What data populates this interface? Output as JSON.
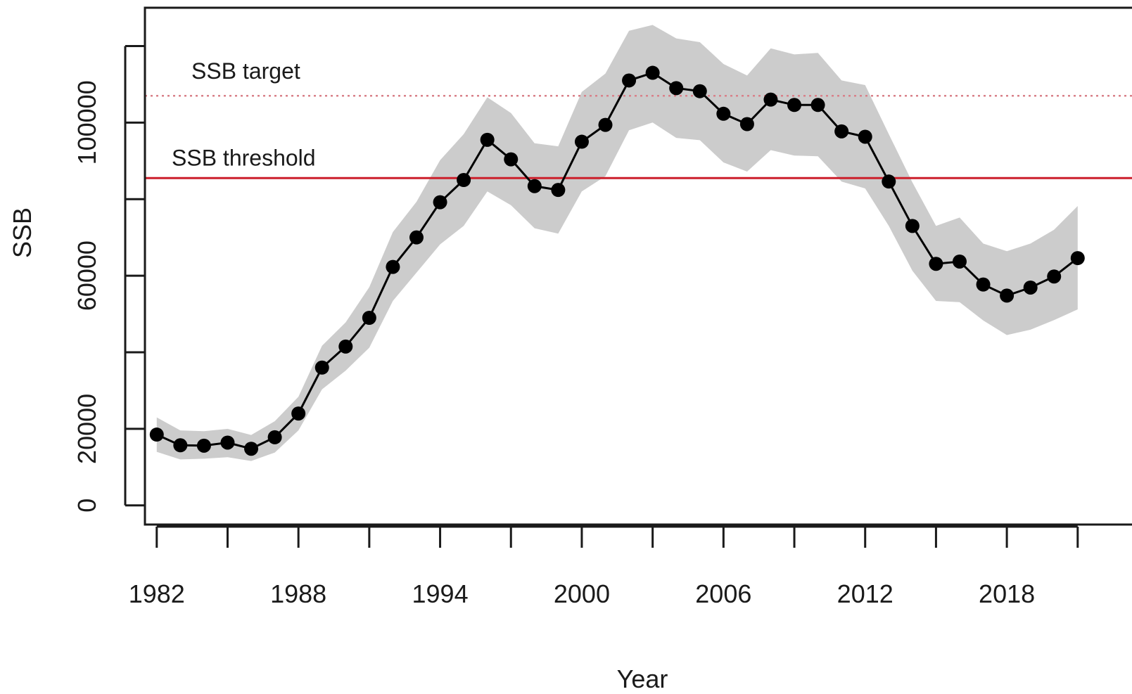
{
  "chart_data": {
    "type": "line",
    "xlabel": "Year",
    "ylabel": "SSB",
    "xlim": [
      1981.5,
      2023.3
    ],
    "ylim": [
      -5000,
      130000
    ],
    "x_ticks": [
      1982,
      1985,
      1988,
      1991,
      1994,
      1997,
      2000,
      2003,
      2006,
      2009,
      2012,
      2015,
      2018,
      2021
    ],
    "x_tick_labels": [
      1982,
      1988,
      1994,
      2000,
      2006,
      2012,
      2018
    ],
    "y_ticks": [
      0,
      20000,
      40000,
      60000,
      80000,
      100000,
      120000
    ],
    "y_tick_labels": [
      0,
      20000,
      60000,
      100000
    ],
    "grid": false,
    "series": [
      {
        "x": [
          1982,
          1983,
          1984,
          1985,
          1986,
          1987,
          1988,
          1989,
          1990,
          1991,
          1992,
          1993,
          1994,
          1995,
          1996,
          1997,
          1998,
          1999,
          2000,
          2001,
          2002,
          2003,
          2004,
          2005,
          2006,
          2007,
          2008,
          2009,
          2010,
          2011,
          2012,
          2013,
          2014,
          2015,
          2016,
          2017,
          2018,
          2019,
          2020,
          2021
        ],
        "values": [
          18500,
          15700,
          15600,
          16400,
          14800,
          17800,
          24000,
          36000,
          41500,
          49000,
          62300,
          70000,
          79200,
          85000,
          95500,
          90400,
          83400,
          82400,
          95000,
          99400,
          111000,
          113000,
          109000,
          108200,
          102300,
          99600,
          106000,
          104600,
          104600,
          97700,
          96300,
          84600,
          73000,
          63100,
          63700,
          57700,
          54800,
          56900,
          59800,
          64600
        ]
      }
    ],
    "band": {
      "lower": [
        14000,
        12000,
        12200,
        12600,
        11600,
        13800,
        19600,
        30300,
        35200,
        41200,
        53400,
        60800,
        68200,
        73000,
        82000,
        78400,
        72400,
        71000,
        82000,
        86000,
        98000,
        100000,
        96000,
        95400,
        89600,
        87200,
        92800,
        91400,
        91200,
        84600,
        82800,
        73000,
        61300,
        53400,
        53100,
        48300,
        44500,
        45900,
        48400,
        51200
      ],
      "upper": [
        23000,
        19600,
        19400,
        20000,
        18400,
        22000,
        28400,
        41700,
        47800,
        57000,
        71400,
        79300,
        90200,
        97000,
        106600,
        102500,
        94600,
        93800,
        108000,
        112800,
        124000,
        125500,
        122000,
        121000,
        115300,
        112300,
        119400,
        117800,
        118200,
        111000,
        109800,
        97000,
        84400,
        73000,
        75200,
        68400,
        66400,
        68400,
        72000,
        78200
      ]
    },
    "reference_lines": [
      {
        "name": "SSB target",
        "y": 107000,
        "style": "dotted",
        "color": "#d9818a"
      },
      {
        "name": "SSB threshold",
        "y": 85500,
        "style": "solid",
        "color": "#cc1f2b"
      }
    ],
    "colors": {
      "line": "#000000",
      "points": "#000000",
      "band": "#cccccc"
    }
  }
}
